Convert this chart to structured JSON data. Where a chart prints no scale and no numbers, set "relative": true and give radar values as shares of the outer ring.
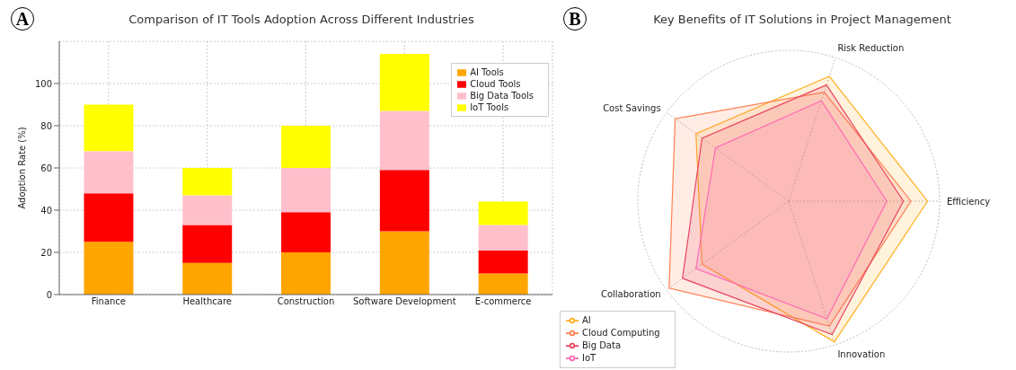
{
  "chart_data": [
    {
      "type": "bar",
      "title": "Comparison of IT Tools Adoption Across Different Industries",
      "ylabel": "Adoption Rate (%)",
      "annotations": [
        "A"
      ],
      "categories": [
        "Finance",
        "Healthcare",
        "Construction",
        "Software Development",
        "E-commerce"
      ],
      "stacked": true,
      "series": [
        {
          "name": "AI Tools",
          "color": "#ffa500",
          "values": [
            25,
            15,
            20,
            30,
            10
          ]
        },
        {
          "name": "Cloud Tools",
          "color": "#ff0000",
          "values": [
            23,
            18,
            19,
            29,
            11
          ]
        },
        {
          "name": "Big Data Tools",
          "color": "#ffc0cb",
          "values": [
            20,
            14,
            21,
            28,
            12
          ]
        },
        {
          "name": "IoT Tools",
          "color": "#ffff00",
          "values": [
            22,
            13,
            20,
            27,
            11
          ]
        }
      ],
      "ylim": [
        0,
        120
      ],
      "yticks": [
        0,
        20,
        40,
        60,
        80,
        100
      ],
      "grid": true,
      "legend": "top right"
    },
    {
      "type": "radar",
      "title": "Key Benefits of IT Solutions in Project Management",
      "annotations": [
        "B"
      ],
      "relative": true,
      "categories": [
        "Risk Reduction",
        "Efficiency",
        "Innovation",
        "Collaboration",
        "Cost Savings"
      ],
      "series": [
        {
          "name": "AI",
          "color": "#ffb020",
          "values": [
            0.87,
            0.92,
            0.98,
            0.71,
            0.76
          ]
        },
        {
          "name": "Cloud Computing",
          "color": "#ff7f50",
          "values": [
            0.76,
            0.81,
            0.87,
            0.98,
            0.93
          ]
        },
        {
          "name": "Big Data",
          "color": "#e8455f",
          "values": [
            0.81,
            0.76,
            0.93,
            0.87,
            0.71
          ]
        },
        {
          "name": "IoT",
          "color": "#ff69b4",
          "values": [
            0.7,
            0.65,
            0.82,
            0.76,
            0.6
          ]
        }
      ],
      "grid": true,
      "legend": "bottom left"
    }
  ]
}
